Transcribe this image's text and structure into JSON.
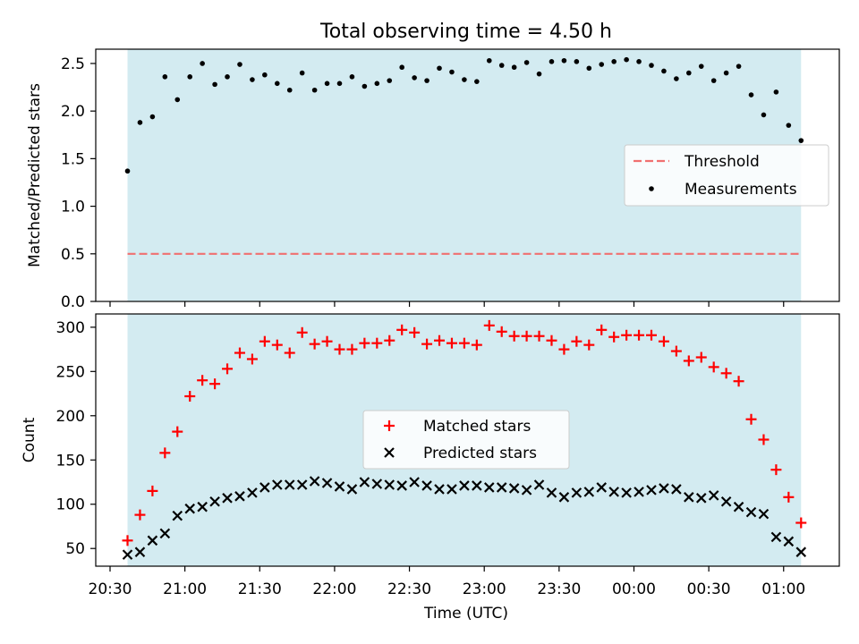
{
  "title": "Total observing time = 4.50 h",
  "colors": {
    "shade": "#d3ebf1",
    "threshold": "#f07070",
    "measurement": "#000000",
    "matched": "#ff0000",
    "predicted": "#000000"
  },
  "chart_data": [
    {
      "type": "scatter",
      "ylabel": "Matched/Predicted stars",
      "ylim": [
        0,
        2.65
      ],
      "yticks": [
        0.0,
        0.5,
        1.0,
        1.5,
        2.0,
        2.5
      ],
      "ytick_labels": [
        "0.0",
        "0.5",
        "1.0",
        "1.5",
        "2.0",
        "2.5"
      ],
      "shaded_span": [
        "20:37",
        "01:07"
      ],
      "threshold": 0.5,
      "legend_position": "center-right",
      "legend": [
        "Threshold",
        "Measurements"
      ],
      "series": [
        {
          "name": "Measurements",
          "marker": "dot",
          "x": [
            "20:37",
            "20:42",
            "20:47",
            "20:52",
            "20:57",
            "21:02",
            "21:07",
            "21:12",
            "21:17",
            "21:22",
            "21:27",
            "21:32",
            "21:37",
            "21:42",
            "21:47",
            "21:52",
            "21:57",
            "22:02",
            "22:07",
            "22:12",
            "22:17",
            "22:22",
            "22:27",
            "22:32",
            "22:37",
            "22:42",
            "22:47",
            "22:52",
            "22:57",
            "23:02",
            "23:07",
            "23:12",
            "23:17",
            "23:22",
            "23:27",
            "23:32",
            "23:37",
            "23:42",
            "23:47",
            "23:52",
            "23:57",
            "00:02",
            "00:07",
            "00:12",
            "00:17",
            "00:22",
            "00:27",
            "00:32",
            "00:37",
            "00:42",
            "00:47",
            "00:52",
            "00:57",
            "01:02",
            "01:07"
          ],
          "y": [
            1.37,
            1.88,
            1.94,
            2.36,
            2.12,
            2.36,
            2.5,
            2.28,
            2.36,
            2.49,
            2.33,
            2.38,
            2.29,
            2.22,
            2.4,
            2.22,
            2.29,
            2.29,
            2.36,
            2.26,
            2.29,
            2.32,
            2.46,
            2.35,
            2.32,
            2.45,
            2.41,
            2.33,
            2.31,
            2.53,
            2.48,
            2.46,
            2.51,
            2.39,
            2.52,
            2.53,
            2.52,
            2.45,
            2.49,
            2.52,
            2.54,
            2.52,
            2.48,
            2.42,
            2.34,
            2.4,
            2.47,
            2.32,
            2.4,
            2.47,
            2.17,
            1.96,
            2.2,
            1.85,
            1.69
          ]
        }
      ]
    },
    {
      "type": "scatter",
      "xlabel": "Time (UTC)",
      "ylabel": "Count",
      "ylim": [
        30,
        315
      ],
      "yticks": [
        50,
        100,
        150,
        200,
        250,
        300
      ],
      "ytick_labels": [
        "50",
        "100",
        "150",
        "200",
        "250",
        "300"
      ],
      "xticks": [
        "20:30",
        "21:00",
        "21:30",
        "22:00",
        "22:30",
        "23:00",
        "23:30",
        "00:00",
        "00:30",
        "01:00"
      ],
      "shaded_span": [
        "20:37",
        "01:07"
      ],
      "legend_position": "center",
      "legend": [
        "Matched stars",
        "Predicted stars"
      ],
      "series": [
        {
          "name": "Matched stars",
          "marker": "plus",
          "x": [
            "20:37",
            "20:42",
            "20:47",
            "20:52",
            "20:57",
            "21:02",
            "21:07",
            "21:12",
            "21:17",
            "21:22",
            "21:27",
            "21:32",
            "21:37",
            "21:42",
            "21:47",
            "21:52",
            "21:57",
            "22:02",
            "22:07",
            "22:12",
            "22:17",
            "22:22",
            "22:27",
            "22:32",
            "22:37",
            "22:42",
            "22:47",
            "22:52",
            "22:57",
            "23:02",
            "23:07",
            "23:12",
            "23:17",
            "23:22",
            "23:27",
            "23:32",
            "23:37",
            "23:42",
            "23:47",
            "23:52",
            "23:57",
            "00:02",
            "00:07",
            "00:12",
            "00:17",
            "00:22",
            "00:27",
            "00:32",
            "00:37",
            "00:42",
            "00:47",
            "00:52",
            "00:57",
            "01:02",
            "01:07"
          ],
          "y": [
            59,
            88,
            115,
            158,
            182,
            222,
            240,
            236,
            253,
            271,
            264,
            284,
            280,
            271,
            294,
            281,
            284,
            275,
            275,
            282,
            282,
            285,
            297,
            294,
            281,
            285,
            282,
            282,
            280,
            302,
            295,
            290,
            290,
            290,
            285,
            275,
            284,
            280,
            297,
            289,
            291,
            291,
            291,
            284,
            273,
            262,
            266,
            255,
            248,
            239,
            196,
            173,
            139,
            108,
            79
          ]
        },
        {
          "name": "Predicted stars",
          "marker": "x",
          "x": [
            "20:37",
            "20:42",
            "20:47",
            "20:52",
            "20:57",
            "21:02",
            "21:07",
            "21:12",
            "21:17",
            "21:22",
            "21:27",
            "21:32",
            "21:37",
            "21:42",
            "21:47",
            "21:52",
            "21:57",
            "22:02",
            "22:07",
            "22:12",
            "22:17",
            "22:22",
            "22:27",
            "22:32",
            "22:37",
            "22:42",
            "22:47",
            "22:52",
            "22:57",
            "23:02",
            "23:07",
            "23:12",
            "23:17",
            "23:22",
            "23:27",
            "23:32",
            "23:37",
            "23:42",
            "23:47",
            "23:52",
            "23:57",
            "00:02",
            "00:07",
            "00:12",
            "00:17",
            "00:22",
            "00:27",
            "00:32",
            "00:37",
            "00:42",
            "00:47",
            "00:52",
            "00:57",
            "01:02",
            "01:07"
          ],
          "y": [
            43,
            46,
            59,
            67,
            87,
            95,
            97,
            103,
            107,
            109,
            113,
            119,
            122,
            122,
            122,
            126,
            124,
            120,
            117,
            125,
            123,
            122,
            121,
            125,
            121,
            117,
            117,
            121,
            121,
            119,
            119,
            118,
            116,
            122,
            113,
            108,
            113,
            114,
            119,
            114,
            113,
            114,
            116,
            118,
            117,
            108,
            107,
            110,
            103,
            97,
            91,
            89,
            63,
            58,
            46
          ]
        }
      ]
    }
  ]
}
